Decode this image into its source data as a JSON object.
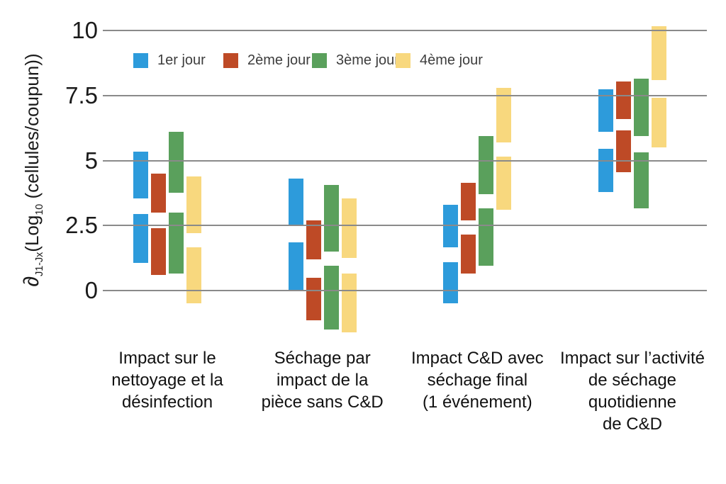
{
  "y_axis": {
    "symbol": "∂",
    "symbol_sub": "J1-Jx",
    "log_text": "(Log",
    "log_sub": "10",
    "rest": " (cellules/coupun))"
  },
  "chart_data": {
    "type": "bar",
    "variant": "floating-range-bars-two-segments",
    "title": "",
    "xlabel": "",
    "ylabel": "∂ J1-Jx (Log10 (cellules/coupun))",
    "grid": true,
    "legend_position": "top",
    "yticks": [
      0,
      2.5,
      5,
      7.5,
      10
    ],
    "ylim": [
      -2,
      10.7
    ],
    "categories": [
      "Impact sur le\nnettoyage et la\ndésinfection",
      "Séchage par\nimpact de la\npièce sans C&D",
      "Impact C&D avec\nséchage final\n(1 événement)",
      "Impact sur l’activité\nde séchage\nquotidienne\nde C&D"
    ],
    "series": [
      {
        "name": "1er jour",
        "color": "#2D9BDB",
        "data": [
          {
            "upper": [
              3.55,
              5.35
            ],
            "lower": [
              1.05,
              2.95
            ]
          },
          {
            "upper": [
              2.5,
              4.3
            ],
            "lower": [
              0.0,
              1.85
            ]
          },
          {
            "upper": [
              1.65,
              3.3
            ],
            "lower": [
              -0.5,
              1.1
            ]
          },
          {
            "upper": [
              6.1,
              7.75
            ],
            "lower": [
              3.8,
              5.45
            ]
          }
        ]
      },
      {
        "name": "2ème jour",
        "color": "#BE4A26",
        "data": [
          {
            "upper": [
              3.0,
              4.5
            ],
            "lower": [
              0.6,
              2.4
            ]
          },
          {
            "upper": [
              1.2,
              2.7
            ],
            "lower": [
              -1.15,
              0.5
            ]
          },
          {
            "upper": [
              2.7,
              4.15
            ],
            "lower": [
              0.65,
              2.15
            ]
          },
          {
            "upper": [
              6.6,
              8.05
            ],
            "lower": [
              4.55,
              6.15
            ]
          }
        ]
      },
      {
        "name": "3ème jour",
        "color": "#5AA05C",
        "data": [
          {
            "upper": [
              3.75,
              6.1
            ],
            "lower": [
              0.65,
              3.0
            ]
          },
          {
            "upper": [
              1.5,
              4.05
            ],
            "lower": [
              -1.5,
              0.95
            ]
          },
          {
            "upper": [
              3.7,
              5.95
            ],
            "lower": [
              0.95,
              3.15
            ]
          },
          {
            "upper": [
              5.95,
              8.15
            ],
            "lower": [
              3.15,
              5.3
            ]
          }
        ]
      },
      {
        "name": "4ème jour",
        "color": "#F8D87E",
        "data": [
          {
            "upper": [
              2.2,
              4.4
            ],
            "lower": [
              -0.5,
              1.65
            ]
          },
          {
            "upper": [
              1.25,
              3.55
            ],
            "lower": [
              -1.6,
              0.65
            ]
          },
          {
            "upper": [
              5.7,
              7.8
            ],
            "lower": [
              3.1,
              5.15
            ]
          },
          {
            "upper": [
              8.1,
              10.15
            ],
            "lower": [
              5.5,
              7.4
            ]
          }
        ]
      }
    ]
  }
}
